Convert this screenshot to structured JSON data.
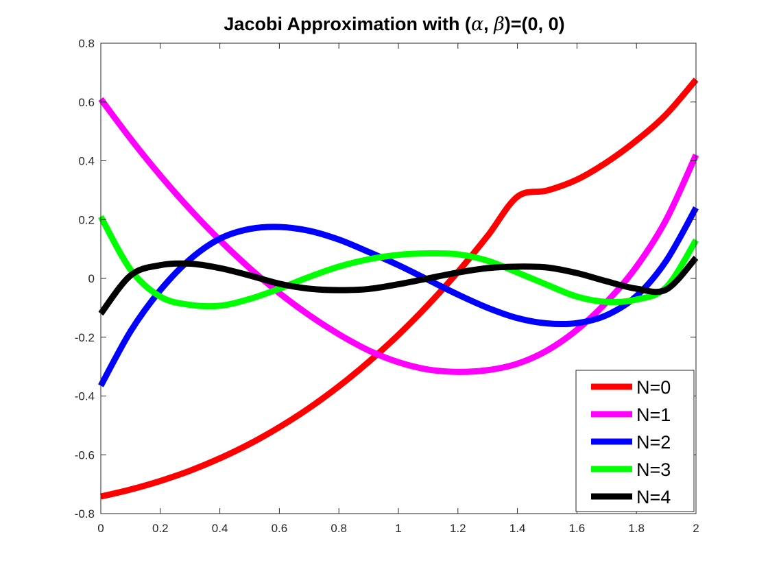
{
  "chart_data": {
    "type": "line",
    "title": {
      "prefix": "Jacobi Approximation with (",
      "alpha": "α",
      "comma": ", ",
      "beta": "β",
      "suffix": ")=(0, 0)"
    },
    "xlabel": "",
    "ylabel": "",
    "xlim": [
      0,
      2
    ],
    "ylim": [
      -0.8,
      0.8
    ],
    "xticks": [
      0,
      0.2,
      0.4,
      0.6,
      0.8,
      1,
      1.2,
      1.4,
      1.6,
      1.8,
      2
    ],
    "xtick_labels": [
      "0",
      "0.2",
      "0.4",
      "0.6",
      "0.8",
      "1",
      "1.2",
      "1.4",
      "1.6",
      "1.8",
      "2"
    ],
    "yticks": [
      -0.8,
      -0.6,
      -0.4,
      -0.2,
      0,
      0.2,
      0.4,
      0.6,
      0.8
    ],
    "ytick_labels": [
      "-0.8",
      "-0.6",
      "-0.4",
      "-0.2",
      "0",
      "0.2",
      "0.4",
      "0.6",
      "0.8"
    ],
    "grid": false,
    "legend_position": "bottom-right",
    "x": [
      0,
      0.1,
      0.2,
      0.3,
      0.4,
      0.5,
      0.6,
      0.7,
      0.8,
      0.9,
      1.0,
      1.1,
      1.2,
      1.3,
      1.4,
      1.5,
      1.6,
      1.7,
      1.8,
      1.9,
      2.0
    ],
    "series": [
      {
        "name": "N=0",
        "color": "#ff0000",
        "values": [
          -0.742,
          -0.718,
          -0.689,
          -0.654,
          -0.612,
          -0.563,
          -0.506,
          -0.441,
          -0.367,
          -0.284,
          -0.192,
          -0.09,
          0.022,
          0.145,
          0.278,
          0.299,
          0.336,
          0.395,
          0.469,
          0.558,
          0.676
        ]
      },
      {
        "name": "N=1",
        "color": "#ff00ff",
        "values": [
          0.61,
          0.475,
          0.35,
          0.235,
          0.13,
          0.035,
          -0.05,
          -0.125,
          -0.19,
          -0.245,
          -0.285,
          -0.31,
          -0.318,
          -0.312,
          -0.29,
          -0.245,
          -0.175,
          -0.08,
          0.04,
          0.2,
          0.42
        ]
      },
      {
        "name": "N=2",
        "color": "#0000ff",
        "values": [
          -0.365,
          -0.18,
          -0.04,
          0.065,
          0.135,
          0.168,
          0.175,
          0.162,
          0.132,
          0.09,
          0.045,
          -0.005,
          -0.055,
          -0.1,
          -0.135,
          -0.153,
          -0.152,
          -0.125,
          -0.06,
          0.06,
          0.24
        ]
      },
      {
        "name": "N=3",
        "color": "#00ff00",
        "values": [
          0.21,
          0.03,
          -0.062,
          -0.09,
          -0.093,
          -0.07,
          -0.035,
          0.005,
          0.04,
          0.065,
          0.08,
          0.085,
          0.082,
          0.06,
          0.02,
          -0.022,
          -0.062,
          -0.08,
          -0.072,
          -0.03,
          0.13
        ]
      },
      {
        "name": "N=4",
        "color": "#000000",
        "values": [
          -0.12,
          0.01,
          0.045,
          0.05,
          0.035,
          0.01,
          -0.018,
          -0.035,
          -0.04,
          -0.036,
          -0.02,
          0.0,
          0.02,
          0.035,
          0.04,
          0.037,
          0.018,
          -0.01,
          -0.035,
          -0.038,
          0.07
        ]
      }
    ]
  }
}
